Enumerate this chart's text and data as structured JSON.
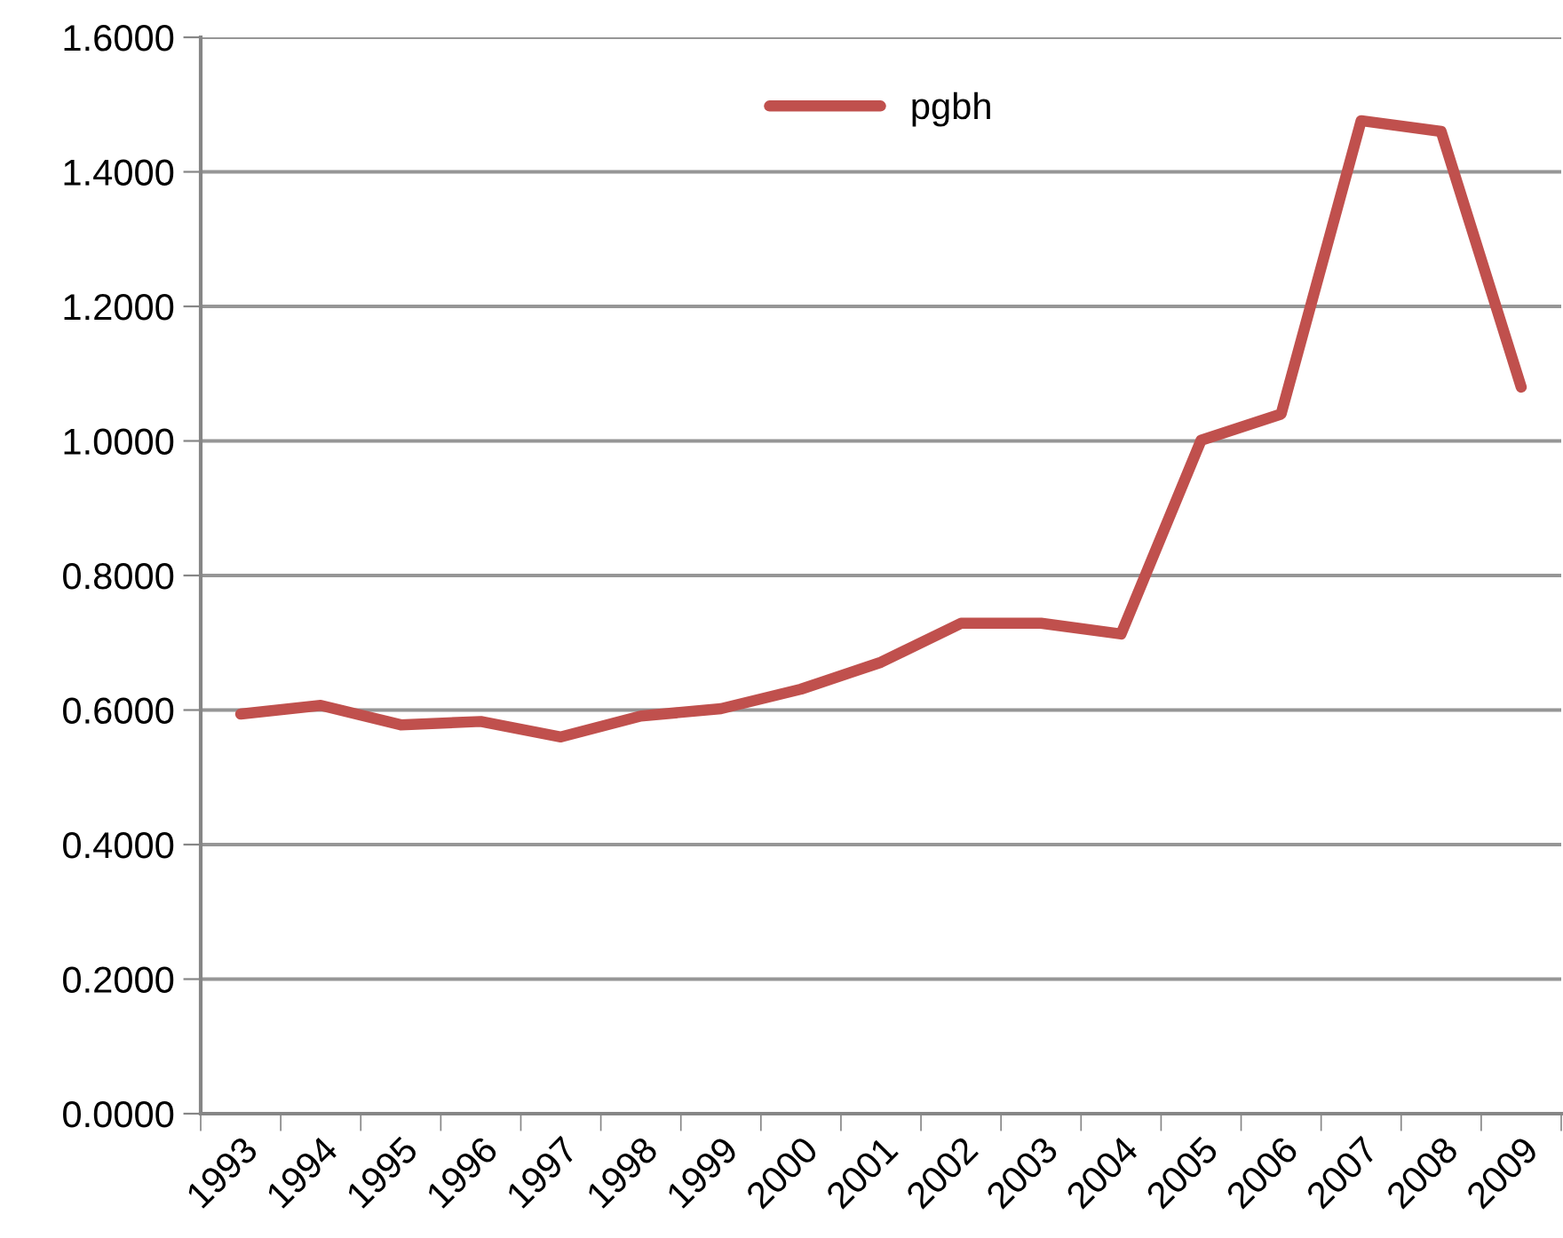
{
  "chart_data": {
    "type": "line",
    "categories": [
      "1993",
      "1994",
      "1995",
      "1996",
      "1997",
      "1998",
      "1999",
      "2000",
      "2001",
      "2002",
      "2003",
      "2004",
      "2005",
      "2006",
      "2007",
      "2008",
      "2009"
    ],
    "series": [
      {
        "name": "pgbh",
        "color": "#c0504d",
        "values": [
          0.594,
          0.607,
          0.578,
          0.583,
          0.56,
          0.591,
          0.602,
          0.631,
          0.671,
          0.729,
          0.729,
          0.713,
          1.001,
          1.04,
          1.476,
          1.46,
          1.08
        ]
      }
    ],
    "ylim": [
      0,
      1.6
    ],
    "yticks": [
      {
        "value": 0,
        "label": "0.0000"
      },
      {
        "value": 0.2,
        "label": "0.2000"
      },
      {
        "value": 0.4,
        "label": "0.4000"
      },
      {
        "value": 0.6,
        "label": "0.6000"
      },
      {
        "value": 0.8,
        "label": "0.8000"
      },
      {
        "value": 1.0,
        "label": "1.0000"
      },
      {
        "value": 1.2,
        "label": "1.2000"
      },
      {
        "value": 1.4,
        "label": "1.4000"
      },
      {
        "value": 1.6,
        "label": "1.6000"
      }
    ],
    "grid": "y",
    "legend": "top",
    "marker": "none",
    "line_style": "solid"
  }
}
